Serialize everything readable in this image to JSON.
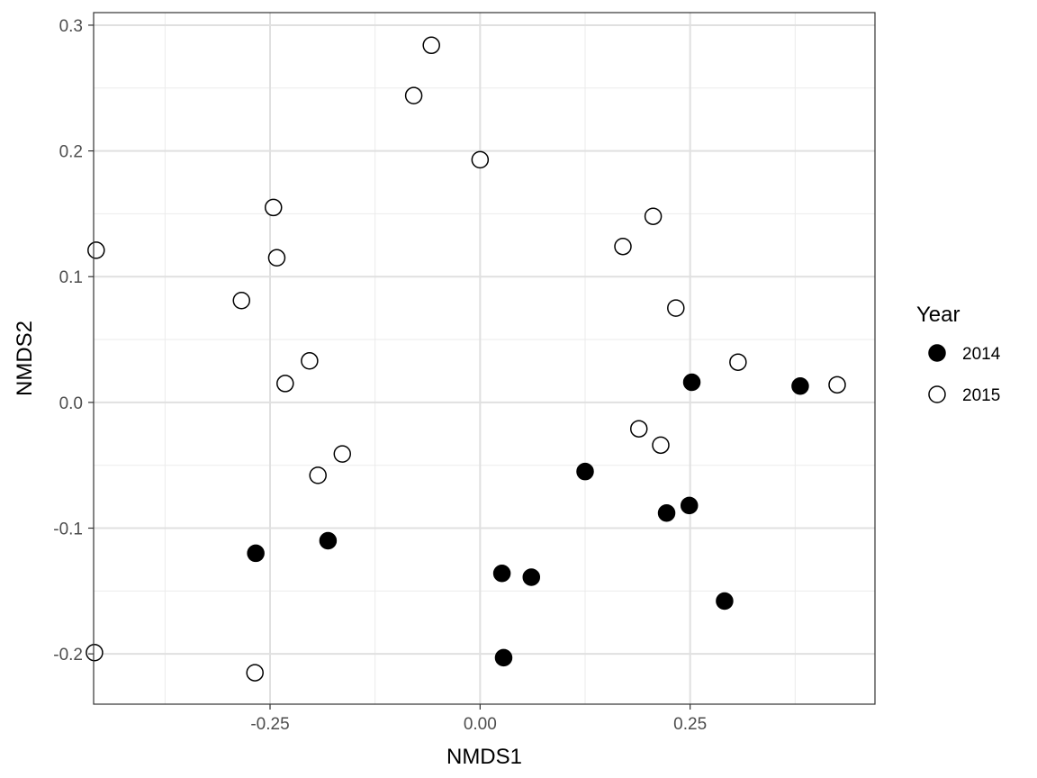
{
  "chart_data": {
    "type": "scatter",
    "title": "",
    "xlabel": "NMDS1",
    "ylabel": "NMDS2",
    "xlim": [
      -0.46,
      0.47
    ],
    "ylim": [
      -0.24,
      0.31
    ],
    "x_ticks": [
      -0.25,
      0.0,
      0.25
    ],
    "x_tick_labels": [
      "-0.25",
      "0.00",
      "0.25"
    ],
    "y_ticks": [
      -0.2,
      -0.1,
      0.0,
      0.1,
      0.2,
      0.3
    ],
    "y_tick_labels": [
      "-0.2",
      "-0.1",
      "0.0",
      "0.1",
      "0.2",
      "0.3"
    ],
    "grid": true,
    "legend": {
      "title": "Year",
      "position": "right"
    },
    "series": [
      {
        "name": "2014",
        "marker": "filled-circle",
        "color": "#000000",
        "points": [
          {
            "x": 0.252,
            "y": 0.016
          },
          {
            "x": 0.381,
            "y": 0.013
          },
          {
            "x": 0.125,
            "y": -0.055
          },
          {
            "x": 0.249,
            "y": -0.082
          },
          {
            "x": 0.222,
            "y": -0.088
          },
          {
            "x": -0.181,
            "y": -0.11
          },
          {
            "x": -0.267,
            "y": -0.12
          },
          {
            "x": 0.026,
            "y": -0.136
          },
          {
            "x": 0.061,
            "y": -0.139
          },
          {
            "x": 0.291,
            "y": -0.158
          },
          {
            "x": 0.028,
            "y": -0.203
          }
        ]
      },
      {
        "name": "2015",
        "marker": "open-circle",
        "color": "#000000",
        "points": [
          {
            "x": -0.058,
            "y": 0.284
          },
          {
            "x": -0.079,
            "y": 0.244
          },
          {
            "x": 0.0,
            "y": 0.193
          },
          {
            "x": -0.246,
            "y": 0.155
          },
          {
            "x": 0.206,
            "y": 0.148
          },
          {
            "x": 0.17,
            "y": 0.124
          },
          {
            "x": -0.457,
            "y": 0.121
          },
          {
            "x": -0.242,
            "y": 0.115
          },
          {
            "x": -0.284,
            "y": 0.081
          },
          {
            "x": 0.233,
            "y": 0.075
          },
          {
            "x": -0.203,
            "y": 0.033
          },
          {
            "x": 0.307,
            "y": 0.032
          },
          {
            "x": -0.232,
            "y": 0.015
          },
          {
            "x": 0.425,
            "y": 0.014
          },
          {
            "x": 0.189,
            "y": -0.021
          },
          {
            "x": 0.215,
            "y": -0.034
          },
          {
            "x": -0.164,
            "y": -0.041
          },
          {
            "x": -0.193,
            "y": -0.058
          },
          {
            "x": -0.459,
            "y": -0.199
          },
          {
            "x": -0.268,
            "y": -0.215
          }
        ]
      }
    ]
  }
}
